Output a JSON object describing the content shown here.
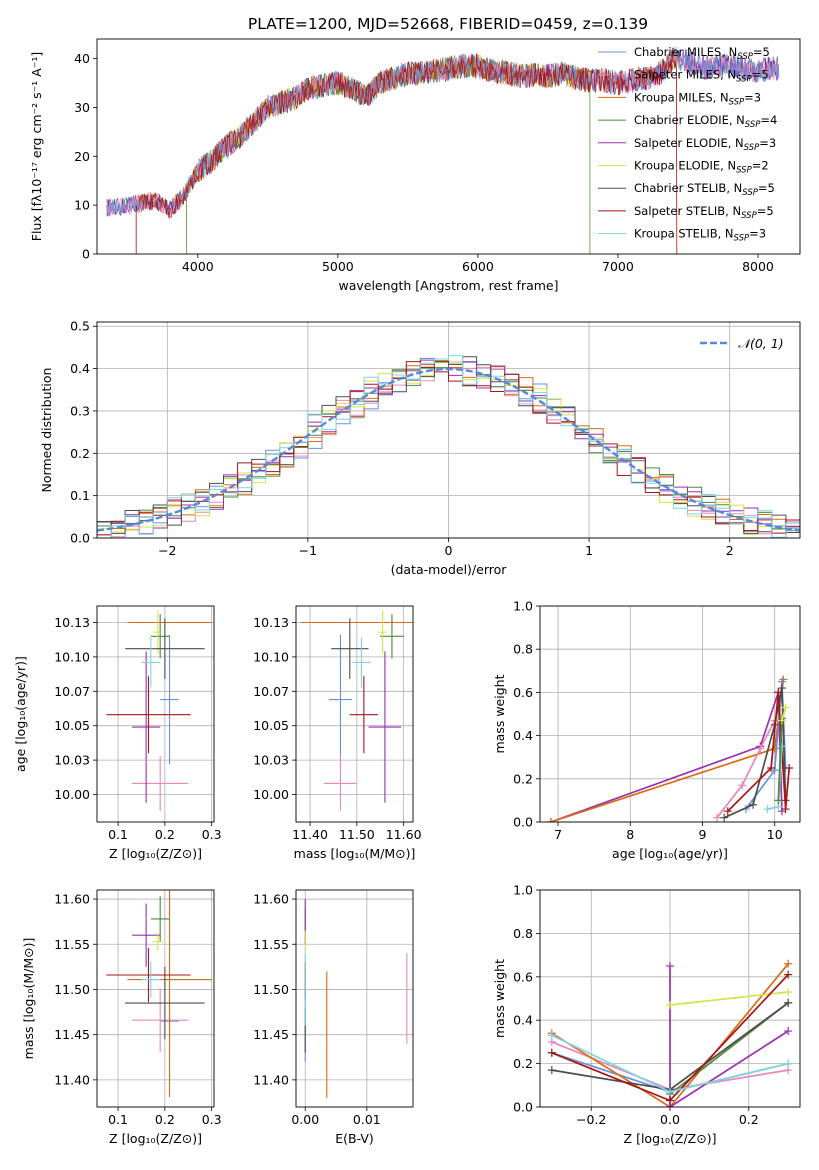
{
  "figure_title": "PLATE=1200, MJD=52668, FIBERID=0459, z=0.139",
  "colors": {
    "chabrier_miles": "#6a8fe0",
    "salpeter_miles": "#e887b8",
    "kroupa_miles": "#d96b17",
    "chabrier_elodie": "#4a8a3a",
    "salpeter_elodie": "#9a2fb0",
    "kroupa_elodie": "#d8e24a",
    "chabrier_stelib": "#4d4d4d",
    "salpeter_stelib": "#a51616",
    "kroupa_stelib": "#7fd4e0",
    "normal": "#5588dd",
    "grid": "#b0b0b0"
  },
  "chart_data": [
    {
      "id": "spectrum",
      "type": "line",
      "title": "PLATE=1200, MJD=52668, FIBERID=0459, z=0.139",
      "xlabel": "wavelength [Angstrom, rest frame]",
      "ylabel": "Flux [fλ10⁻¹⁷ erg cm⁻² s⁻¹ A⁻¹]",
      "xlim": [
        3280,
        8300
      ],
      "ylim": [
        0,
        44
      ],
      "grid": false,
      "legend_position": "top-right",
      "xticks": [
        4000,
        5000,
        6000,
        7000,
        8000
      ],
      "yticks": [
        0,
        10,
        20,
        30,
        40
      ],
      "continuum": [
        [
          3350,
          9.5
        ],
        [
          3500,
          9.8
        ],
        [
          3600,
          10.5
        ],
        [
          3700,
          11
        ],
        [
          3800,
          9
        ],
        [
          3900,
          12
        ],
        [
          4000,
          17
        ],
        [
          4100,
          19
        ],
        [
          4200,
          22
        ],
        [
          4300,
          24
        ],
        [
          4400,
          27
        ],
        [
          4500,
          30
        ],
        [
          4600,
          31
        ],
        [
          4700,
          32
        ],
        [
          4800,
          34
        ],
        [
          4900,
          34.5
        ],
        [
          5000,
          35
        ],
        [
          5100,
          34
        ],
        [
          5200,
          32
        ],
        [
          5300,
          35
        ],
        [
          5400,
          36
        ],
        [
          5500,
          37
        ],
        [
          5600,
          37
        ],
        [
          5700,
          37.5
        ],
        [
          5800,
          38
        ],
        [
          5900,
          38.5
        ],
        [
          6000,
          38.5
        ],
        [
          6100,
          37.5
        ],
        [
          6200,
          37
        ],
        [
          6300,
          36.5
        ],
        [
          6400,
          36.5
        ],
        [
          6500,
          36.5
        ],
        [
          6600,
          37
        ],
        [
          6700,
          36
        ],
        [
          6800,
          35.5
        ],
        [
          6900,
          35.5
        ],
        [
          7000,
          35
        ],
        [
          7100,
          35.5
        ],
        [
          7200,
          36
        ],
        [
          7300,
          37
        ],
        [
          7400,
          40
        ],
        [
          7500,
          39.5
        ],
        [
          7600,
          38
        ],
        [
          7700,
          38.5
        ],
        [
          7800,
          38.5
        ],
        [
          7900,
          38
        ],
        [
          8000,
          37.5
        ],
        [
          8100,
          38
        ],
        [
          8150,
          38
        ]
      ],
      "legend": [
        {
          "label": "Chabrier MILES, N",
          "sub": "SSP",
          "suffix": "=5",
          "color_key": "chabrier_miles"
        },
        {
          "label": "Salpeter MILES, N",
          "sub": "SSP",
          "suffix": "=5",
          "color_key": "salpeter_miles"
        },
        {
          "label": "Kroupa MILES, N",
          "sub": "SSP",
          "suffix": "=3",
          "color_key": "kroupa_miles"
        },
        {
          "label": "Chabrier ELODIE, N",
          "sub": "SSP",
          "suffix": "=4",
          "color_key": "chabrier_elodie"
        },
        {
          "label": "Salpeter ELODIE, N",
          "sub": "SSP",
          "suffix": "=3",
          "color_key": "salpeter_elodie"
        },
        {
          "label": "Kroupa ELODIE, N",
          "sub": "SSP",
          "suffix": "=2",
          "color_key": "kroupa_elodie"
        },
        {
          "label": "Chabrier STELIB, N",
          "sub": "SSP",
          "suffix": "=5",
          "color_key": "chabrier_stelib"
        },
        {
          "label": "Salpeter STELIB, N",
          "sub": "SSP",
          "suffix": "=5",
          "color_key": "salpeter_stelib"
        },
        {
          "label": "Kroupa STELIB, N",
          "sub": "SSP",
          "suffix": "=3",
          "color_key": "kroupa_stelib"
        }
      ]
    },
    {
      "id": "residuals",
      "type": "line",
      "xlabel": "(data-model)/error",
      "ylabel": "Normed distribution",
      "xlim": [
        -2.5,
        2.5
      ],
      "ylim": [
        0,
        0.51
      ],
      "grid": true,
      "legend_position": "top-right",
      "legend_label": "𝒩(0, 1)",
      "xticks": [
        -2,
        -1,
        0,
        1,
        2
      ],
      "yticks": [
        0.0,
        0.1,
        0.2,
        0.3,
        0.4,
        0.5
      ],
      "normal_mu": 0,
      "normal_sigma": 1
    },
    {
      "id": "age-vs-z",
      "type": "scatter",
      "xlabel": "Z [log₁₀(Z/Z⊙)]",
      "ylabel": "age  [log₁₀(age/yr)]",
      "xlim": [
        0.055,
        0.305
      ],
      "ylim": [
        9.98,
        10.137
      ],
      "grid": true,
      "xticks": [
        0.1,
        0.2,
        0.3
      ],
      "yticks": [
        10.0,
        10.025,
        10.05,
        10.075,
        10.1,
        10.125
      ],
      "points": [
        {
          "color_key": "chabrier_miles",
          "x": 0.21,
          "y": 10.069,
          "xerr": 0.02,
          "yerr": 0.047
        },
        {
          "color_key": "salpeter_miles",
          "x": 0.19,
          "y": 10.008,
          "xerr": 0.06,
          "yerr": 0.02
        },
        {
          "color_key": "kroupa_miles",
          "x": 0.21,
          "y": 10.125,
          "xerr": 0.09,
          "yerr": 0.0
        },
        {
          "color_key": "chabrier_elodie",
          "x": 0.19,
          "y": 10.115,
          "xerr": 0.02,
          "yerr": 0.016
        },
        {
          "color_key": "salpeter_elodie",
          "x": 0.16,
          "y": 10.049,
          "xerr": 0.03,
          "yerr": 0.055
        },
        {
          "color_key": "kroupa_elodie",
          "x": 0.185,
          "y": 10.118,
          "xerr": 0.01,
          "yerr": 0.016
        },
        {
          "color_key": "chabrier_stelib",
          "x": 0.2,
          "y": 10.106,
          "xerr": 0.085,
          "yerr": 0.022
        },
        {
          "color_key": "salpeter_stelib",
          "x": 0.165,
          "y": 10.058,
          "xerr": 0.09,
          "yerr": 0.028
        },
        {
          "color_key": "kroupa_stelib",
          "x": 0.17,
          "y": 10.096,
          "xerr": 0.02,
          "yerr": 0.018
        }
      ]
    },
    {
      "id": "age-vs-mass",
      "type": "scatter",
      "xlabel": "mass [log₁₀(M/M⊙)]",
      "ylabel": "",
      "xlim": [
        11.37,
        11.62
      ],
      "ylim": [
        9.98,
        10.137
      ],
      "grid": true,
      "xticks": [
        11.4,
        11.5,
        11.6
      ],
      "yticks": [
        10.0,
        10.025,
        10.05,
        10.075,
        10.1,
        10.125
      ],
      "points": [
        {
          "color_key": "chabrier_miles",
          "x": 11.465,
          "y": 10.069,
          "xerr": 0.025,
          "yerr": 0.047
        },
        {
          "color_key": "salpeter_miles",
          "x": 11.465,
          "y": 10.008,
          "xerr": 0.035,
          "yerr": 0.02
        },
        {
          "color_key": "kroupa_miles",
          "x": 11.51,
          "y": 10.125,
          "xerr": 0.13,
          "yerr": 0.0
        },
        {
          "color_key": "chabrier_elodie",
          "x": 11.575,
          "y": 10.115,
          "xerr": 0.025,
          "yerr": 0.016
        },
        {
          "color_key": "salpeter_elodie",
          "x": 11.56,
          "y": 10.049,
          "xerr": 0.035,
          "yerr": 0.055
        },
        {
          "color_key": "kroupa_elodie",
          "x": 11.555,
          "y": 10.118,
          "xerr": 0.01,
          "yerr": 0.016
        },
        {
          "color_key": "chabrier_stelib",
          "x": 11.485,
          "y": 10.106,
          "xerr": 0.04,
          "yerr": 0.022
        },
        {
          "color_key": "salpeter_stelib",
          "x": 11.515,
          "y": 10.058,
          "xerr": 0.03,
          "yerr": 0.028
        },
        {
          "color_key": "kroupa_stelib",
          "x": 11.51,
          "y": 10.096,
          "xerr": 0.02,
          "yerr": 0.018
        }
      ]
    },
    {
      "id": "mass-weight-vs-age",
      "type": "line",
      "xlabel": "age  [log₁₀(age/yr)]",
      "ylabel": "mass weight",
      "xlim": [
        6.75,
        10.35
      ],
      "ylim": [
        0,
        1.0
      ],
      "grid": true,
      "xticks": [
        7,
        8,
        9,
        10
      ],
      "yticks": [
        0.0,
        0.2,
        0.4,
        0.6,
        0.8,
        1.0
      ],
      "series": [
        {
          "color_key": "salpeter_elodie",
          "points": [
            [
              6.9,
              0.0
            ],
            [
              9.8,
              0.35
            ],
            [
              10.05,
              0.6
            ],
            [
              10.1,
              0.05
            ]
          ]
        },
        {
          "color_key": "kroupa_miles",
          "points": [
            [
              6.9,
              0.0
            ],
            [
              10.0,
              0.34
            ],
            [
              10.12,
              0.66
            ]
          ]
        },
        {
          "color_key": "salpeter_miles",
          "points": [
            [
              9.2,
              0.02
            ],
            [
              9.55,
              0.17
            ],
            [
              9.8,
              0.34
            ],
            [
              10.0,
              0.47
            ]
          ]
        },
        {
          "color_key": "chabrier_miles",
          "points": [
            [
              9.6,
              0.06
            ],
            [
              10.0,
              0.24
            ],
            [
              10.1,
              0.65
            ],
            [
              10.15,
              0.25
            ]
          ]
        },
        {
          "color_key": "chabrier_stelib",
          "points": [
            [
              9.3,
              0.02
            ],
            [
              9.7,
              0.08
            ],
            [
              10.0,
              0.45
            ],
            [
              10.1,
              0.62
            ],
            [
              10.15,
              0.1
            ]
          ]
        },
        {
          "color_key": "salpeter_stelib",
          "points": [
            [
              9.35,
              0.05
            ],
            [
              9.95,
              0.25
            ],
            [
              10.05,
              0.6
            ],
            [
              10.15,
              0.06
            ],
            [
              10.2,
              0.25
            ]
          ]
        },
        {
          "color_key": "kroupa_stelib",
          "points": [
            [
              9.9,
              0.06
            ],
            [
              10.05,
              0.07
            ],
            [
              10.1,
              0.35
            ]
          ]
        },
        {
          "color_key": "chabrier_elodie",
          "points": [
            [
              10.05,
              0.1
            ],
            [
              10.1,
              0.48
            ]
          ]
        },
        {
          "color_key": "kroupa_elodie",
          "points": [
            [
              10.1,
              0.47
            ],
            [
              10.15,
              0.53
            ]
          ]
        }
      ]
    },
    {
      "id": "mass-vs-z",
      "type": "scatter",
      "xlabel": "Z [log₁₀(Z/Z⊙)]",
      "ylabel": "mass [log₁₀(M/M⊙)]",
      "xlim": [
        0.055,
        0.305
      ],
      "ylim": [
        11.37,
        11.61
      ],
      "grid": true,
      "xticks": [
        0.1,
        0.2,
        0.3
      ],
      "yticks": [
        11.4,
        11.45,
        11.5,
        11.55,
        11.6
      ],
      "points": [
        {
          "color_key": "chabrier_miles",
          "x": 0.21,
          "y": 11.465,
          "xerr": 0.02,
          "yerr": 0.025
        },
        {
          "color_key": "salpeter_miles",
          "x": 0.19,
          "y": 11.466,
          "xerr": 0.06,
          "yerr": 0.035
        },
        {
          "color_key": "kroupa_miles",
          "x": 0.21,
          "y": 11.511,
          "xerr": 0.09,
          "yerr": 0.13
        },
        {
          "color_key": "chabrier_elodie",
          "x": 0.19,
          "y": 11.578,
          "xerr": 0.02,
          "yerr": 0.025
        },
        {
          "color_key": "salpeter_elodie",
          "x": 0.16,
          "y": 11.56,
          "xerr": 0.03,
          "yerr": 0.035
        },
        {
          "color_key": "kroupa_elodie",
          "x": 0.185,
          "y": 11.553,
          "xerr": 0.01,
          "yerr": 0.01
        },
        {
          "color_key": "chabrier_stelib",
          "x": 0.2,
          "y": 11.485,
          "xerr": 0.085,
          "yerr": 0.04
        },
        {
          "color_key": "salpeter_stelib",
          "x": 0.165,
          "y": 11.516,
          "xerr": 0.09,
          "yerr": 0.03
        },
        {
          "color_key": "kroupa_stelib",
          "x": 0.17,
          "y": 11.511,
          "xerr": 0.02,
          "yerr": 0.02
        }
      ]
    },
    {
      "id": "mass-vs-ebv",
      "type": "scatter",
      "xlabel": "E(B-V)",
      "ylabel": "",
      "xlim": [
        -0.0015,
        0.0175
      ],
      "ylim": [
        11.37,
        11.61
      ],
      "grid": true,
      "xticks": [
        0.0,
        0.01
      ],
      "yticks": [
        11.4,
        11.45,
        11.5,
        11.55,
        11.6
      ],
      "points": [
        {
          "color_key": "chabrier_miles",
          "x": 0.0,
          "y": 11.465,
          "xerr": 0,
          "yerr": 0.045
        },
        {
          "color_key": "salpeter_miles",
          "x": 0.0165,
          "y": 11.49,
          "xerr": 0,
          "yerr": 0.05
        },
        {
          "color_key": "kroupa_miles",
          "x": 0.0035,
          "y": 11.45,
          "xerr": 0,
          "yerr": 0.07
        },
        {
          "color_key": "chabrier_elodie",
          "x": 0.0,
          "y": 11.57,
          "xerr": 0,
          "yerr": 0.02
        },
        {
          "color_key": "salpeter_elodie",
          "x": 0.0,
          "y": 11.575,
          "xerr": 0,
          "yerr": 0.025
        },
        {
          "color_key": "kroupa_elodie",
          "x": 0.0,
          "y": 11.555,
          "xerr": 0,
          "yerr": 0.01
        },
        {
          "color_key": "chabrier_stelib",
          "x": 0.0,
          "y": 11.455,
          "xerr": 0,
          "yerr": 0.025
        },
        {
          "color_key": "salpeter_stelib",
          "x": 0.0,
          "y": 11.51,
          "xerr": 0,
          "yerr": 0.02
        },
        {
          "color_key": "kroupa_stelib",
          "x": 0.0,
          "y": 11.5,
          "xerr": 0,
          "yerr": 0.04
        }
      ]
    },
    {
      "id": "mass-weight-vs-z",
      "type": "line",
      "xlabel": "Z [log₁₀(Z/Z⊙)]",
      "ylabel": "mass weight",
      "xlim": [
        -0.33,
        0.33
      ],
      "ylim": [
        0,
        1.0
      ],
      "grid": true,
      "xticks": [
        -0.2,
        0.0,
        0.2
      ],
      "yticks": [
        0.0,
        0.2,
        0.4,
        0.6,
        0.8,
        1.0
      ],
      "series": [
        {
          "color_key": "chabrier_miles",
          "points": [
            [
              -0.3,
              0.25
            ],
            [
              0.0,
              0.07
            ],
            [
              0.3,
              0.2
            ]
          ]
        },
        {
          "color_key": "salpeter_miles",
          "points": [
            [
              -0.3,
              0.3
            ],
            [
              0.0,
              0.08
            ],
            [
              0.3,
              0.17
            ]
          ]
        },
        {
          "color_key": "kroupa_miles",
          "points": [
            [
              -0.3,
              0.34
            ],
            [
              0.0,
              0.0
            ],
            [
              0.3,
              0.66
            ]
          ]
        },
        {
          "color_key": "chabrier_elodie",
          "points": [
            [
              0.0,
              0.06
            ],
            [
              0.3,
              0.48
            ]
          ]
        },
        {
          "color_key": "salpeter_elodie",
          "points": [
            [
              0.0,
              0.65
            ],
            [
              0.0,
              0.0
            ],
            [
              0.3,
              0.35
            ]
          ]
        },
        {
          "color_key": "kroupa_elodie",
          "points": [
            [
              0.0,
              0.47
            ],
            [
              0.3,
              0.53
            ]
          ]
        },
        {
          "color_key": "chabrier_stelib",
          "points": [
            [
              -0.3,
              0.17
            ],
            [
              0.0,
              0.08
            ],
            [
              0.3,
              0.48
            ]
          ]
        },
        {
          "color_key": "salpeter_stelib",
          "points": [
            [
              -0.3,
              0.25
            ],
            [
              0.0,
              0.03
            ],
            [
              0.3,
              0.61
            ]
          ]
        },
        {
          "color_key": "kroupa_stelib",
          "points": [
            [
              -0.3,
              0.33
            ],
            [
              0.0,
              0.07
            ],
            [
              0.3,
              0.2
            ]
          ]
        }
      ]
    }
  ]
}
